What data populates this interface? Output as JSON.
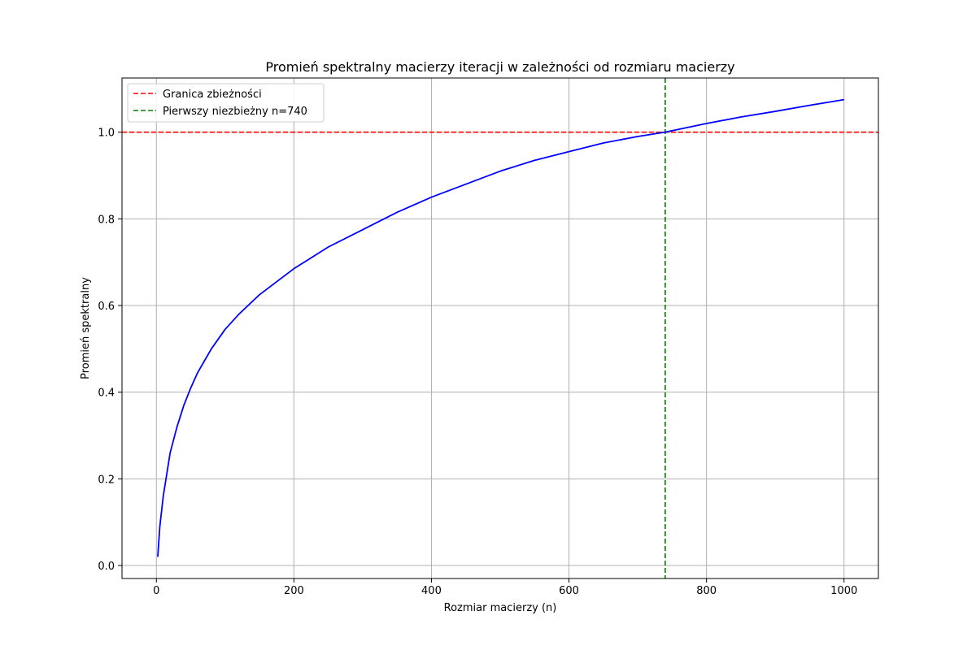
{
  "chart_data": {
    "type": "line",
    "title": "Promień spektralny macierzy iteracji w zależności od rozmiaru macierzy",
    "xlabel": "Rozmiar macierzy (n)",
    "ylabel": "Promień spektralny",
    "xlim": [
      -50,
      1050
    ],
    "ylim": [
      -0.03,
      1.125
    ],
    "xticks": [
      0,
      200,
      400,
      600,
      800,
      1000
    ],
    "yticks": [
      0.0,
      0.2,
      0.4,
      0.6,
      0.8,
      1.0
    ],
    "xtick_labels": [
      "0",
      "200",
      "400",
      "600",
      "800",
      "1000"
    ],
    "ytick_labels": [
      "0.0",
      "0.2",
      "0.4",
      "0.6",
      "0.8",
      "1.0"
    ],
    "grid": true,
    "legend_position": "top-left",
    "series": [
      {
        "color": "#0000ff",
        "x": [
          2,
          5,
          10,
          20,
          30,
          40,
          50,
          60,
          80,
          100,
          120,
          150,
          200,
          250,
          300,
          350,
          400,
          450,
          500,
          550,
          600,
          650,
          700,
          740,
          800,
          850,
          900,
          950,
          1000
        ],
        "y": [
          0.02,
          0.09,
          0.16,
          0.26,
          0.32,
          0.37,
          0.41,
          0.445,
          0.5,
          0.545,
          0.58,
          0.625,
          0.685,
          0.735,
          0.775,
          0.815,
          0.85,
          0.88,
          0.91,
          0.935,
          0.955,
          0.975,
          0.99,
          1.0,
          1.02,
          1.035,
          1.048,
          1.062,
          1.075
        ]
      }
    ],
    "reference_lines": [
      {
        "name": "Granica zbieżności",
        "orientation": "horizontal",
        "value": 1.0,
        "color": "#ff0000",
        "style": "dashed"
      },
      {
        "name": "Pierwszy niezbieżny n=740",
        "orientation": "vertical",
        "value": 740,
        "color": "#008000",
        "style": "dashed"
      }
    ]
  }
}
